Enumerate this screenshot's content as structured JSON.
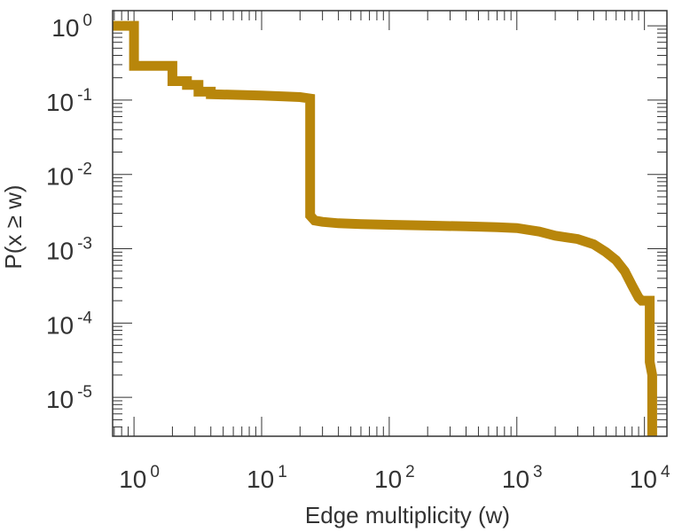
{
  "chart_data": {
    "type": "line",
    "subtype": "step-ccdf",
    "title": "",
    "xlabel": "Edge multiplicity (w)",
    "ylabel": "P(x ≥ w)",
    "x_scale": "log",
    "y_scale": "log",
    "xlim": [
      0.68,
      15000
    ],
    "ylim": [
      3e-06,
      1.6
    ],
    "grid": false,
    "line_color": "#B8860B",
    "x_ticks": [
      {
        "base": "10",
        "exp": "0",
        "value": 1
      },
      {
        "base": "10",
        "exp": "1",
        "value": 10
      },
      {
        "base": "10",
        "exp": "2",
        "value": 100
      },
      {
        "base": "10",
        "exp": "3",
        "value": 1000
      },
      {
        "base": "10",
        "exp": "4",
        "value": 10000
      }
    ],
    "y_ticks": [
      {
        "base": "10",
        "exp": "0",
        "value": 1
      },
      {
        "base": "10",
        "exp": "-1",
        "value": 0.1
      },
      {
        "base": "10",
        "exp": "-2",
        "value": 0.01
      },
      {
        "base": "10",
        "exp": "-3",
        "value": 0.001
      },
      {
        "base": "10",
        "exp": "-4",
        "value": 0.0001
      },
      {
        "base": "10",
        "exp": "-5",
        "value": 1e-05
      }
    ],
    "series": [
      {
        "x": [
          0.68,
          1.0,
          1.0,
          1.4,
          1.4,
          2.0,
          2.0,
          2.6,
          2.6,
          3.2,
          3.2,
          4.0,
          4.0,
          6.0,
          10.0,
          15.0,
          20.0,
          24.0,
          24.0,
          26.0,
          30.0,
          40.0,
          60.0,
          100.0,
          200.0,
          400.0,
          700.0,
          1000.0,
          1500.0,
          2000.0,
          3000.0,
          4000.0,
          5000.0,
          6000.0,
          7000.0,
          8000.0,
          9000.0,
          9500.0,
          10000.0,
          11000.0,
          11000.0,
          11500.0,
          11500.0
        ],
        "y": [
          1.0,
          1.0,
          0.29,
          0.29,
          0.29,
          0.29,
          0.18,
          0.18,
          0.16,
          0.16,
          0.13,
          0.13,
          0.12,
          0.118,
          0.115,
          0.112,
          0.11,
          0.105,
          0.0028,
          0.0024,
          0.0023,
          0.0022,
          0.00215,
          0.0021,
          0.00205,
          0.002,
          0.00195,
          0.0019,
          0.0017,
          0.0015,
          0.00135,
          0.00115,
          0.0009,
          0.0007,
          0.0005,
          0.00032,
          0.00022,
          0.0002,
          0.0002,
          0.0002,
          3e-05,
          2e-05,
          3e-06
        ]
      }
    ]
  }
}
